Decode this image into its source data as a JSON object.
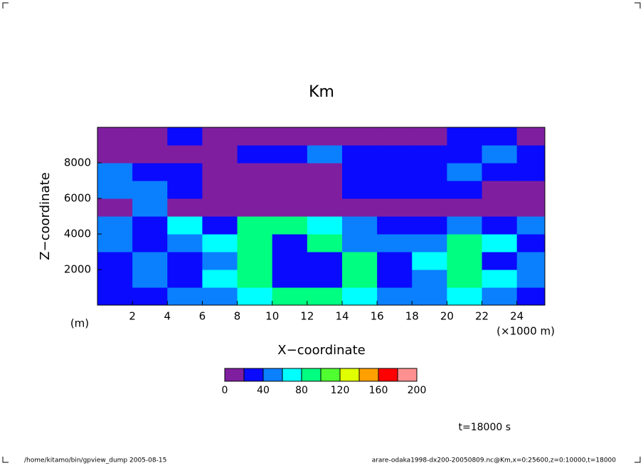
{
  "chart_data": {
    "type": "contour",
    "title": "Km",
    "x_label": "X−coordinate",
    "y_label": "Z−coordinate",
    "x_unit": "(×1000 m)",
    "y_unit": "(m)",
    "time_label": "t=18000 s",
    "footer_left": "/home/kitamo/bin/gpview_dump  2005-08-15",
    "footer_right": "arare-odaka1998-dx200-20050809.nc@Km,x=0:25600,z=0:10000,t=18000",
    "xlim": [
      0,
      25600
    ],
    "ylim": [
      0,
      10000
    ],
    "xticks": [
      {
        "value": 2000,
        "label": "2"
      },
      {
        "value": 4000,
        "label": "4"
      },
      {
        "value": 6000,
        "label": "6"
      },
      {
        "value": 8000,
        "label": "8"
      },
      {
        "value": 10000,
        "label": "10"
      },
      {
        "value": 12000,
        "label": "12"
      },
      {
        "value": 14000,
        "label": "14"
      },
      {
        "value": 16000,
        "label": "16"
      },
      {
        "value": 18000,
        "label": "18"
      },
      {
        "value": 20000,
        "label": "20"
      },
      {
        "value": 22000,
        "label": "22"
      },
      {
        "value": 24000,
        "label": "24"
      }
    ],
    "yticks": [
      2000,
      4000,
      6000,
      8000
    ],
    "x": [
      1000,
      3000,
      5000,
      7000,
      9000,
      11000,
      13000,
      15000,
      17000,
      19000,
      21000,
      23000,
      25000
    ],
    "z": [
      500,
      1500,
      2500,
      3500,
      4500,
      5500,
      6500,
      7500,
      8500,
      9500
    ],
    "values": [
      [
        30,
        30,
        50,
        50,
        70,
        90,
        90,
        70,
        50,
        50,
        70,
        50,
        30
      ],
      [
        30,
        50,
        30,
        70,
        90,
        30,
        30,
        90,
        30,
        50,
        90,
        70,
        50
      ],
      [
        30,
        50,
        30,
        50,
        90,
        30,
        30,
        90,
        30,
        70,
        90,
        30,
        50
      ],
      [
        50,
        30,
        50,
        70,
        90,
        30,
        90,
        50,
        50,
        50,
        90,
        70,
        30
      ],
      [
        50,
        30,
        70,
        30,
        90,
        90,
        70,
        50,
        30,
        30,
        50,
        30,
        50
      ],
      [
        10,
        50,
        10,
        10,
        10,
        10,
        10,
        10,
        10,
        10,
        10,
        10,
        10
      ],
      [
        50,
        50,
        30,
        10,
        10,
        10,
        10,
        30,
        30,
        30,
        30,
        10,
        10
      ],
      [
        50,
        30,
        30,
        10,
        10,
        10,
        10,
        30,
        30,
        30,
        50,
        30,
        30
      ],
      [
        10,
        10,
        10,
        10,
        30,
        30,
        50,
        30,
        30,
        30,
        30,
        50,
        30
      ],
      [
        10,
        10,
        30,
        10,
        10,
        10,
        10,
        10,
        10,
        10,
        30,
        30,
        10
      ]
    ],
    "levels": [
      0,
      20,
      40,
      60,
      80,
      100,
      120,
      140,
      160,
      180,
      200
    ],
    "colors": [
      "#7f1fa0",
      "#0a0aff",
      "#0a80ff",
      "#00ffff",
      "#00ff80",
      "#50ff30",
      "#e0ff00",
      "#ffa000",
      "#ff0000",
      "#ff9090"
    ],
    "cbar_ticks": [
      0,
      40,
      80,
      120,
      160,
      200
    ]
  }
}
